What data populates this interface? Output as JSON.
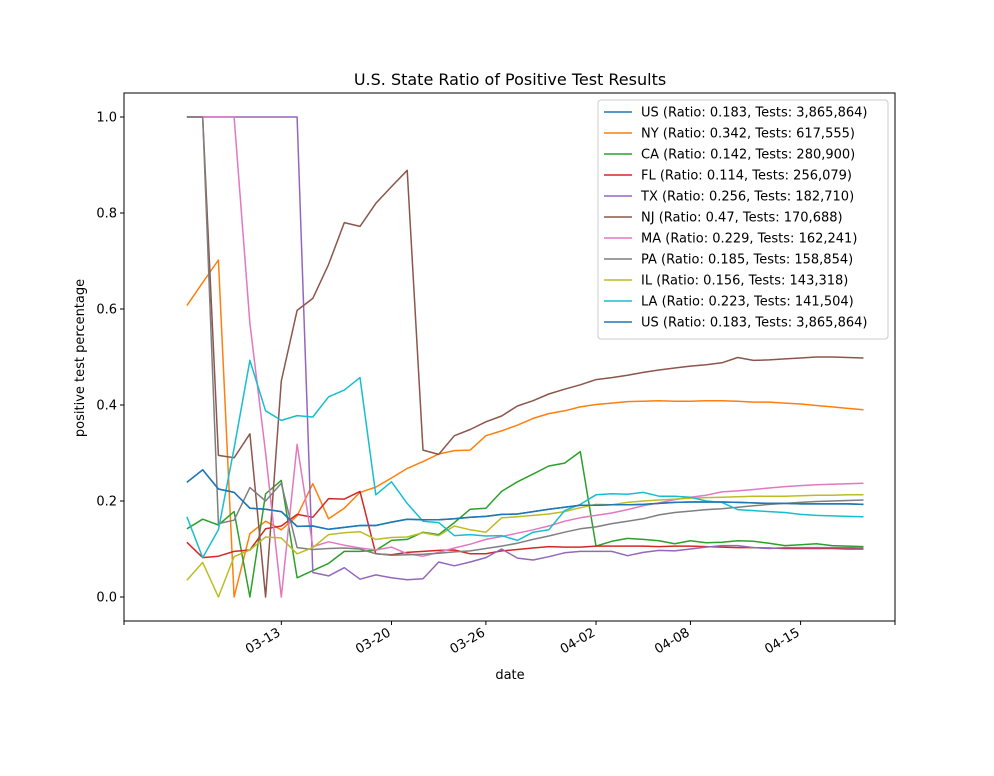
{
  "chart_data": {
    "type": "line",
    "title": "U.S. State Ratio of Positive Test Results",
    "xlabel": "date",
    "ylabel": "positive test percentage",
    "grid": false,
    "legend_position": "top-right",
    "x": [
      "2020-03-07",
      "2020-03-08",
      "2020-03-09",
      "2020-03-10",
      "2020-03-11",
      "2020-03-12",
      "2020-03-13",
      "2020-03-14",
      "2020-03-15",
      "2020-03-16",
      "2020-03-17",
      "2020-03-18",
      "2020-03-19",
      "2020-03-20",
      "2020-03-21",
      "2020-03-22",
      "2020-03-23",
      "2020-03-24",
      "2020-03-25",
      "2020-03-26",
      "2020-03-27",
      "2020-03-28",
      "2020-03-29",
      "2020-03-30",
      "2020-03-31",
      "2020-04-01",
      "2020-04-02",
      "2020-04-03",
      "2020-04-04",
      "2020-04-05",
      "2020-04-06",
      "2020-04-07",
      "2020-04-08",
      "2020-04-09",
      "2020-04-10",
      "2020-04-11",
      "2020-04-12",
      "2020-04-13",
      "2020-04-14",
      "2020-04-15",
      "2020-04-16",
      "2020-04-17",
      "2020-04-18",
      "2020-04-19"
    ],
    "xlim": [
      "2020-03-03",
      "2020-04-21"
    ],
    "ylim": [
      -0.05,
      1.05
    ],
    "x_ticks": [
      "03-13",
      "03-20",
      "03-26",
      "04-02",
      "04-08",
      "04-15"
    ],
    "y_ticks": [
      "0.0",
      "0.2",
      "0.4",
      "0.6",
      "0.8",
      "1.0"
    ],
    "series": [
      {
        "name": "US (Ratio: 0.183, Tests: 3,865,864)",
        "color": "#1f77b4",
        "values": [
          0.239,
          0.265,
          0.225,
          0.218,
          0.185,
          0.183,
          0.178,
          0.147,
          0.148,
          0.141,
          0.145,
          0.149,
          0.149,
          0.156,
          0.162,
          0.161,
          0.161,
          0.163,
          0.166,
          0.168,
          0.172,
          0.173,
          0.178,
          0.183,
          0.187,
          0.191,
          0.191,
          0.192,
          0.192,
          0.193,
          0.195,
          0.197,
          0.198,
          0.198,
          0.198,
          0.197,
          0.196,
          0.195,
          0.195,
          0.194,
          0.194,
          0.194,
          0.194,
          0.193
        ]
      },
      {
        "name": "NY (Ratio: 0.342, Tests: 617,555)",
        "color": "#ff7f0e",
        "values": [
          0.607,
          0.655,
          0.702,
          0.0,
          0.132,
          0.158,
          0.14,
          0.169,
          0.236,
          0.163,
          0.185,
          0.218,
          0.229,
          0.248,
          0.268,
          0.282,
          0.298,
          0.305,
          0.306,
          0.336,
          0.346,
          0.358,
          0.372,
          0.382,
          0.388,
          0.396,
          0.401,
          0.404,
          0.407,
          0.408,
          0.409,
          0.408,
          0.408,
          0.409,
          0.409,
          0.408,
          0.406,
          0.406,
          0.404,
          0.402,
          0.399,
          0.396,
          0.393,
          0.39
        ]
      },
      {
        "name": "CA (Ratio: 0.142, Tests: 280,900)",
        "color": "#2ca02c",
        "values": [
          0.142,
          0.162,
          0.15,
          0.178,
          0.0,
          0.215,
          0.243,
          0.04,
          0.055,
          0.07,
          0.095,
          0.095,
          0.097,
          0.118,
          0.12,
          0.135,
          0.13,
          0.155,
          0.183,
          0.185,
          0.22,
          0.24,
          0.256,
          0.273,
          0.279,
          0.303,
          0.106,
          0.116,
          0.122,
          0.12,
          0.117,
          0.111,
          0.117,
          0.113,
          0.114,
          0.117,
          0.116,
          0.112,
          0.107,
          0.109,
          0.111,
          0.107,
          0.106,
          0.105
        ]
      },
      {
        "name": "FL (Ratio: 0.114, Tests: 256,079)",
        "color": "#d62728",
        "values": [
          0.114,
          0.082,
          0.085,
          0.095,
          0.098,
          0.142,
          0.148,
          0.172,
          0.166,
          0.205,
          0.204,
          0.22,
          0.09,
          0.088,
          0.093,
          0.095,
          0.097,
          0.098,
          0.09,
          0.09,
          0.096,
          0.099,
          0.102,
          0.105,
          0.104,
          0.104,
          0.106,
          0.106,
          0.106,
          0.106,
          0.105,
          0.106,
          0.106,
          0.105,
          0.104,
          0.103,
          0.103,
          0.102,
          0.101,
          0.101,
          0.101,
          0.101,
          0.1,
          0.1
        ]
      },
      {
        "name": "TX (Ratio: 0.256, Tests: 182,710)",
        "color": "#9467bd",
        "values": [
          1.0,
          1.0,
          1.0,
          1.0,
          1.0,
          1.0,
          1.0,
          1.0,
          0.051,
          0.044,
          0.061,
          0.037,
          0.046,
          0.04,
          0.036,
          0.038,
          0.073,
          0.065,
          0.073,
          0.082,
          0.1,
          0.081,
          0.077,
          0.084,
          0.092,
          0.095,
          0.095,
          0.095,
          0.086,
          0.093,
          0.097,
          0.096,
          0.1,
          0.104,
          0.107,
          0.107,
          0.103,
          0.101,
          0.103,
          0.103,
          0.103,
          0.103,
          0.103,
          0.102
        ]
      },
      {
        "name": "NJ (Ratio: 0.47, Tests: 170,688)",
        "color": "#8c564b",
        "values": [
          1.0,
          1.0,
          0.295,
          0.29,
          0.34,
          0.0,
          0.45,
          0.597,
          0.622,
          0.693,
          0.78,
          0.772,
          0.82,
          0.855,
          0.889,
          0.306,
          0.297,
          0.336,
          0.349,
          0.365,
          0.377,
          0.398,
          0.409,
          0.423,
          0.433,
          0.442,
          0.453,
          0.457,
          0.462,
          0.468,
          0.473,
          0.477,
          0.481,
          0.484,
          0.488,
          0.499,
          0.493,
          0.494,
          0.496,
          0.498,
          0.5,
          0.5,
          0.499,
          0.498
        ]
      },
      {
        "name": "MA (Ratio: 0.229, Tests: 162,241)",
        "color": "#e377c2",
        "values": [
          1.0,
          1.0,
          1.0,
          1.0,
          0.57,
          0.3,
          0.0,
          0.318,
          0.105,
          0.115,
          0.108,
          0.102,
          0.098,
          0.104,
          0.09,
          0.085,
          0.093,
          0.102,
          0.11,
          0.12,
          0.126,
          0.133,
          0.14,
          0.148,
          0.158,
          0.165,
          0.17,
          0.175,
          0.182,
          0.19,
          0.196,
          0.203,
          0.208,
          0.212,
          0.219,
          0.221,
          0.224,
          0.227,
          0.23,
          0.232,
          0.234,
          0.235,
          0.236,
          0.237
        ]
      },
      {
        "name": "PA (Ratio: 0.185, Tests: 158,854)",
        "color": "#7f7f7f",
        "values": [
          1.0,
          1.0,
          0.153,
          0.16,
          0.228,
          0.2,
          0.237,
          0.103,
          0.099,
          0.101,
          0.102,
          0.1,
          0.09,
          0.087,
          0.088,
          0.089,
          0.091,
          0.094,
          0.096,
          0.101,
          0.106,
          0.112,
          0.12,
          0.127,
          0.135,
          0.142,
          0.146,
          0.153,
          0.158,
          0.163,
          0.171,
          0.176,
          0.179,
          0.182,
          0.184,
          0.187,
          0.19,
          0.193,
          0.195,
          0.197,
          0.199,
          0.2,
          0.201,
          0.202
        ]
      },
      {
        "name": "IL (Ratio: 0.156, Tests: 143,318)",
        "color": "#bcbd22",
        "values": [
          0.035,
          0.072,
          0.0,
          0.084,
          0.098,
          0.125,
          0.123,
          0.09,
          0.103,
          0.13,
          0.134,
          0.136,
          0.12,
          0.124,
          0.125,
          0.134,
          0.128,
          0.148,
          0.14,
          0.135,
          0.165,
          0.167,
          0.17,
          0.173,
          0.178,
          0.186,
          0.193,
          0.192,
          0.197,
          0.2,
          0.202,
          0.204,
          0.206,
          0.207,
          0.208,
          0.209,
          0.21,
          0.21,
          0.21,
          0.211,
          0.212,
          0.212,
          0.213,
          0.213
        ]
      },
      {
        "name": "LA (Ratio: 0.223, Tests: 141,504)",
        "color": "#17becf",
        "values": [
          0.167,
          0.082,
          0.14,
          0.31,
          0.493,
          0.388,
          0.368,
          0.378,
          0.375,
          0.417,
          0.431,
          0.457,
          0.213,
          0.24,
          0.195,
          0.158,
          0.155,
          0.128,
          0.13,
          0.127,
          0.128,
          0.118,
          0.135,
          0.14,
          0.18,
          0.193,
          0.213,
          0.215,
          0.214,
          0.218,
          0.21,
          0.21,
          0.208,
          0.2,
          0.197,
          0.182,
          0.18,
          0.178,
          0.176,
          0.172,
          0.17,
          0.169,
          0.168,
          0.167
        ]
      },
      {
        "name": "US (Ratio: 0.183, Tests: 3,865,864)",
        "color": "#1f77b4",
        "values": [
          0.239,
          0.265,
          0.225,
          0.218,
          0.185,
          0.183,
          0.178,
          0.147,
          0.148,
          0.141,
          0.145,
          0.149,
          0.149,
          0.156,
          0.162,
          0.161,
          0.161,
          0.163,
          0.166,
          0.168,
          0.172,
          0.173,
          0.178,
          0.183,
          0.187,
          0.191,
          0.191,
          0.192,
          0.192,
          0.193,
          0.195,
          0.197,
          0.198,
          0.198,
          0.198,
          0.197,
          0.196,
          0.195,
          0.195,
          0.194,
          0.194,
          0.194,
          0.194,
          0.193
        ]
      }
    ]
  }
}
